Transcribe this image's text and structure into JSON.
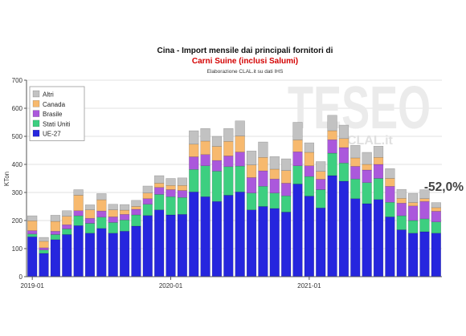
{
  "chart_data": {
    "type": "bar",
    "stacked": true,
    "title": "Cina - Import mensile dai principali fornitori di",
    "subtitle": "Carni Suine (inclusi Salumi)",
    "source": "Elaborazione CLAL.it su dati IHS",
    "xlabel": "",
    "ylabel": "KTon",
    "ylim": [
      0,
      700
    ],
    "yticks": [
      0,
      100,
      200,
      300,
      400,
      500,
      600,
      700
    ],
    "x": [
      "2019-01",
      "2019-02",
      "2019-03",
      "2019-04",
      "2019-05",
      "2019-06",
      "2019-07",
      "2019-08",
      "2019-09",
      "2019-10",
      "2019-11",
      "2019-12",
      "2020-01",
      "2020-02",
      "2020-03",
      "2020-04",
      "2020-05",
      "2020-06",
      "2020-07",
      "2020-08",
      "2020-09",
      "2020-10",
      "2020-11",
      "2020-12",
      "2021-01",
      "2021-02",
      "2021-03",
      "2021-04",
      "2021-05",
      "2021-06",
      "2021-07",
      "2021-08",
      "2021-09",
      "2021-10",
      "2021-11",
      "2021-12"
    ],
    "xticks": [
      "2019-01",
      "2020-01",
      "2021-01"
    ],
    "grid": true,
    "legend": "top-left",
    "series": [
      {
        "name": "UE-27",
        "color": "#2626de",
        "values": [
          142,
          83,
          132,
          150,
          182,
          155,
          172,
          155,
          162,
          180,
          218,
          238,
          220,
          222,
          302,
          285,
          268,
          290,
          302,
          238,
          250,
          243,
          230,
          330,
          287,
          245,
          360,
          340,
          278,
          260,
          275,
          213,
          167,
          155,
          160,
          155
        ]
      },
      {
        "name": "Stati Uniti",
        "color": "#3dcf80",
        "values": [
          10,
          12,
          18,
          20,
          35,
          35,
          40,
          38,
          40,
          40,
          40,
          55,
          65,
          60,
          80,
          110,
          108,
          102,
          92,
          60,
          72,
          55,
          58,
          65,
          70,
          65,
          80,
          65,
          70,
          75,
          75,
          52,
          50,
          45,
          46,
          40
        ]
      },
      {
        "name": "Brasile",
        "color": "#ab58dc",
        "values": [
          12,
          8,
          12,
          15,
          18,
          18,
          22,
          20,
          20,
          20,
          20,
          25,
          25,
          25,
          45,
          40,
          38,
          38,
          50,
          55,
          55,
          50,
          45,
          50,
          38,
          37,
          48,
          55,
          45,
          45,
          50,
          57,
          45,
          52,
          62,
          38
        ]
      },
      {
        "name": "Canada",
        "color": "#f7b96e",
        "values": [
          35,
          23,
          35,
          30,
          55,
          30,
          40,
          25,
          15,
          10,
          20,
          15,
          15,
          18,
          45,
          48,
          50,
          52,
          57,
          45,
          48,
          35,
          45,
          42,
          48,
          28,
          32,
          32,
          30,
          20,
          25,
          28,
          17,
          12,
          10,
          13
        ]
      },
      {
        "name": "Altri",
        "color": "#c2c2c2",
        "values": [
          18,
          14,
          22,
          20,
          20,
          18,
          22,
          20,
          20,
          22,
          25,
          27,
          25,
          27,
          48,
          45,
          36,
          46,
          54,
          50,
          55,
          45,
          42,
          63,
          34,
          35,
          55,
          48,
          45,
          43,
          40,
          35,
          32,
          33,
          32,
          18
        ]
      }
    ],
    "annotation": "-52,0%"
  },
  "watermark": {
    "text": "TESEO",
    "sub": "CLAL.it"
  }
}
